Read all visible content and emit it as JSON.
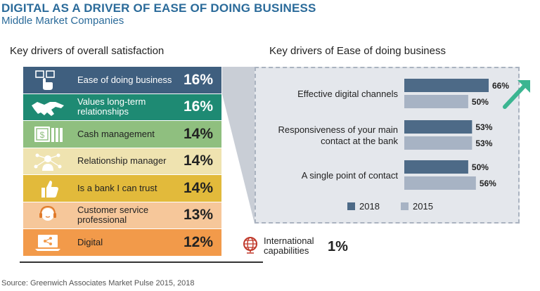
{
  "header": {
    "title": "DIGITAL AS A DRIVER OF EASE OF DOING BUSINESS",
    "subtitle": "Middle Market Companies"
  },
  "left": {
    "heading": "Key drivers of overall satisfaction",
    "drivers": [
      {
        "label": "Ease of doing business",
        "pct": "16%",
        "bg": "#3f5f7f",
        "fg": "#ffffff",
        "icon": "touch-screen-icon"
      },
      {
        "label": "Values long-term relationships",
        "pct": "16%",
        "bg": "#1e8a73",
        "fg": "#ffffff",
        "icon": "handshake-icon"
      },
      {
        "label": "Cash management",
        "pct": "14%",
        "bg": "#8fbf7f",
        "fg": "#222222",
        "icon": "cash-icon"
      },
      {
        "label": "Relationship manager",
        "pct": "14%",
        "bg": "#efe3b0",
        "fg": "#222222",
        "icon": "network-person-icon"
      },
      {
        "label": "Is a bank I can trust",
        "pct": "14%",
        "bg": "#e2ba3b",
        "fg": "#222222",
        "icon": "thumbs-up-icon"
      },
      {
        "label": "Customer service professional",
        "pct": "13%",
        "bg": "#f6c79a",
        "fg": "#222222",
        "icon": "headset-person-icon"
      },
      {
        "label": "Digital",
        "pct": "12%",
        "bg": "#f29a4a",
        "fg": "#222222",
        "icon": "laptop-share-icon"
      }
    ]
  },
  "right": {
    "heading": "Key drivers of Ease of doing business"
  },
  "extra": {
    "label": "International capabilities",
    "pct": "1%",
    "icon": "globe-icon"
  },
  "chart_data": {
    "type": "bar",
    "orientation": "horizontal",
    "title": "Key drivers of Ease of doing business",
    "categories": [
      "Effective digital channels",
      "Responsiveness of your main contact at the bank",
      "A single point of contact"
    ],
    "category_lines": [
      [
        "Effective digital channels"
      ],
      [
        "Responsiveness of your main",
        "contact at the bank"
      ],
      [
        "A single point of contact"
      ]
    ],
    "series": [
      {
        "name": "2018",
        "values": [
          66,
          53,
          50
        ],
        "color": "#4d6a87"
      },
      {
        "name": "2015",
        "values": [
          50,
          53,
          56
        ],
        "color": "#a7b3c4"
      }
    ],
    "unit": "%",
    "xlim": [
      0,
      70
    ],
    "legend": "bottom-left",
    "annotation": "up-trend-arrow"
  },
  "footer": {
    "source": "Source: Greenwich Associates Market Pulse 2015, 2018"
  }
}
